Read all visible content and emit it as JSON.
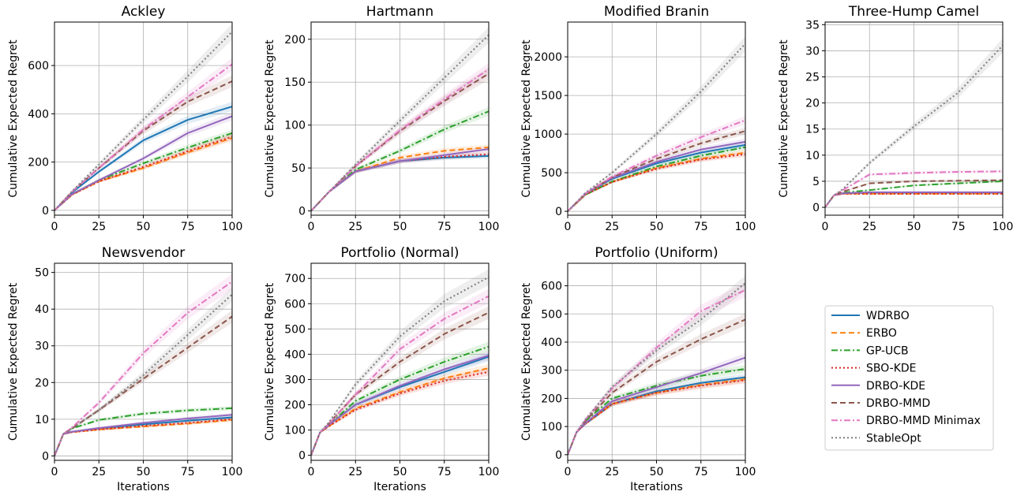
{
  "colors": {
    "WDRBO": "#1f77b4",
    "ERBO": "#ff7f0e",
    "GP-UCB": "#2ca02c",
    "SBO-KDE": "#d62728",
    "DRBO-KDE": "#9467bd",
    "DRBO-MMD": "#8c564b",
    "DRBO-MMD Minimax": "#e377c2",
    "StableOpt": "#7f7f7f"
  },
  "legend": {
    "placement": "right-middle",
    "entries": [
      {
        "name": "WDRBO",
        "style": "solid"
      },
      {
        "name": "ERBO",
        "style": "dashed"
      },
      {
        "name": "GP-UCB",
        "style": "dashdot"
      },
      {
        "name": "SBO-KDE",
        "style": "dotted"
      },
      {
        "name": "DRBO-KDE",
        "style": "solid"
      },
      {
        "name": "DRBO-MMD",
        "style": "dashed"
      },
      {
        "name": "DRBO-MMD Minimax",
        "style": "dashdot"
      },
      {
        "name": "StableOpt",
        "style": "dotted"
      }
    ]
  },
  "chart_data": [
    {
      "type": "line",
      "title": "Ackley",
      "xlabel": "",
      "ylabel": "Cumulative Expected Regret",
      "xlim": [
        0,
        100
      ],
      "ylim": [
        -20,
        780
      ],
      "xticks": [
        0,
        25,
        50,
        75,
        100
      ],
      "yticks": [
        0,
        200,
        400,
        600
      ],
      "grid": true,
      "x": [
        0,
        10,
        25,
        50,
        75,
        100
      ],
      "series": [
        {
          "name": "WDRBO",
          "values": [
            0,
            75,
            160,
            290,
            375,
            430
          ]
        },
        {
          "name": "ERBO",
          "values": [
            0,
            65,
            120,
            175,
            240,
            300
          ]
        },
        {
          "name": "GP-UCB",
          "values": [
            0,
            68,
            125,
            195,
            260,
            320
          ]
        },
        {
          "name": "SBO-KDE",
          "values": [
            0,
            65,
            120,
            180,
            245,
            305
          ]
        },
        {
          "name": "DRBO-KDE",
          "values": [
            0,
            68,
            125,
            215,
            320,
            390
          ]
        },
        {
          "name": "DRBO-MMD",
          "values": [
            0,
            78,
            175,
            330,
            450,
            535
          ]
        },
        {
          "name": "DRBO-MMD Minimax",
          "values": [
            0,
            78,
            175,
            335,
            470,
            605
          ]
        },
        {
          "name": "StableOpt",
          "values": [
            0,
            80,
            190,
            375,
            555,
            740
          ]
        }
      ]
    },
    {
      "type": "line",
      "title": "Hartmann",
      "xlabel": "",
      "ylabel": "Cumulative Expected Regret",
      "xlim": [
        0,
        100
      ],
      "ylim": [
        -5,
        220
      ],
      "xticks": [
        0,
        25,
        50,
        75,
        100
      ],
      "yticks": [
        0,
        50,
        100,
        150,
        200
      ],
      "grid": true,
      "x": [
        0,
        10,
        25,
        50,
        75,
        100
      ],
      "series": [
        {
          "name": "WDRBO",
          "values": [
            0,
            22,
            46,
            58,
            62,
            64
          ]
        },
        {
          "name": "ERBO",
          "values": [
            0,
            22,
            46,
            62,
            70,
            74
          ]
        },
        {
          "name": "GP-UCB",
          "values": [
            0,
            22,
            48,
            70,
            95,
            116
          ]
        },
        {
          "name": "SBO-KDE",
          "values": [
            0,
            22,
            46,
            58,
            63,
            66
          ]
        },
        {
          "name": "DRBO-KDE",
          "values": [
            0,
            22,
            46,
            58,
            65,
            72
          ]
        },
        {
          "name": "DRBO-MMD",
          "values": [
            0,
            22,
            52,
            93,
            128,
            160
          ]
        },
        {
          "name": "DRBO-MMD Minimax",
          "values": [
            0,
            22,
            52,
            94,
            130,
            165
          ]
        },
        {
          "name": "StableOpt",
          "values": [
            0,
            22,
            54,
            105,
            155,
            205
          ]
        }
      ]
    },
    {
      "type": "line",
      "title": "Modified Branin",
      "xlabel": "",
      "ylabel": "Cumulative Expected Regret",
      "xlim": [
        0,
        100
      ],
      "ylim": [
        -50,
        2450
      ],
      "xticks": [
        0,
        25,
        50,
        75,
        100
      ],
      "yticks": [
        0,
        500,
        1000,
        1500,
        2000
      ],
      "grid": true,
      "x": [
        0,
        10,
        25,
        50,
        75,
        100
      ],
      "series": [
        {
          "name": "WDRBO",
          "values": [
            0,
            230,
            420,
            620,
            760,
            860
          ]
        },
        {
          "name": "ERBO",
          "values": [
            0,
            215,
            380,
            560,
            680,
            760
          ]
        },
        {
          "name": "GP-UCB",
          "values": [
            0,
            215,
            385,
            580,
            720,
            830
          ]
        },
        {
          "name": "SBO-KDE",
          "values": [
            0,
            215,
            380,
            550,
            670,
            740
          ]
        },
        {
          "name": "DRBO-KDE",
          "values": [
            0,
            230,
            430,
            640,
            800,
            900
          ]
        },
        {
          "name": "DRBO-MMD",
          "values": [
            0,
            230,
            440,
            680,
            880,
            1040
          ]
        },
        {
          "name": "DRBO-MMD Minimax",
          "values": [
            0,
            230,
            450,
            720,
            960,
            1180
          ]
        },
        {
          "name": "StableOpt",
          "values": [
            0,
            240,
            500,
            1000,
            1550,
            2170
          ]
        }
      ]
    },
    {
      "type": "line",
      "title": "Three-Hump Camel",
      "xlabel": "",
      "ylabel": "Cumulative Expected Regret",
      "xlim": [
        0,
        100
      ],
      "ylim": [
        -1.5,
        35.5
      ],
      "xticks": [
        0,
        25,
        50,
        75,
        100
      ],
      "yticks": [
        0,
        5,
        10,
        15,
        20,
        25,
        30,
        35
      ],
      "grid": true,
      "x": [
        0,
        5,
        10,
        25,
        50,
        75,
        100
      ],
      "series": [
        {
          "name": "WDRBO",
          "values": [
            0,
            2.3,
            2.7,
            2.8,
            2.8,
            2.8,
            2.8
          ]
        },
        {
          "name": "ERBO",
          "values": [
            0,
            2.3,
            2.6,
            2.6,
            2.6,
            2.6,
            2.6
          ]
        },
        {
          "name": "GP-UCB",
          "values": [
            0,
            2.3,
            2.8,
            3.3,
            4.2,
            4.6,
            5.0
          ]
        },
        {
          "name": "SBO-KDE",
          "values": [
            0,
            2.3,
            2.6,
            2.6,
            2.6,
            2.6,
            2.6
          ]
        },
        {
          "name": "DRBO-KDE",
          "values": [
            0,
            2.3,
            2.7,
            2.9,
            2.9,
            2.9,
            2.9
          ]
        },
        {
          "name": "DRBO-MMD",
          "values": [
            0,
            2.3,
            3.0,
            4.6,
            5.0,
            5.1,
            5.2
          ]
        },
        {
          "name": "DRBO-MMD Minimax",
          "values": [
            0,
            2.3,
            3.3,
            6.3,
            6.6,
            6.8,
            6.9
          ]
        },
        {
          "name": "StableOpt",
          "values": [
            0,
            2.3,
            3.5,
            8.5,
            15.5,
            22.0,
            31.0
          ]
        }
      ]
    },
    {
      "type": "line",
      "title": "Newsvendor",
      "xlabel": "Iterations",
      "ylabel": "Cumulative Expected Regret",
      "xlim": [
        0,
        100
      ],
      "ylim": [
        -1.2,
        52.5
      ],
      "xticks": [
        0,
        25,
        50,
        75,
        100
      ],
      "yticks": [
        0,
        10,
        20,
        30,
        40,
        50
      ],
      "grid": true,
      "x": [
        0,
        5,
        10,
        25,
        50,
        75,
        100
      ],
      "series": [
        {
          "name": "WDRBO",
          "values": [
            0,
            6.0,
            6.6,
            7.5,
            8.6,
            9.6,
            10.5
          ]
        },
        {
          "name": "ERBO",
          "values": [
            0,
            6.0,
            6.5,
            7.2,
            8.0,
            8.8,
            9.8
          ]
        },
        {
          "name": "GP-UCB",
          "values": [
            0,
            6.0,
            7.5,
            9.8,
            11.5,
            12.4,
            13.0
          ]
        },
        {
          "name": "SBO-KDE",
          "values": [
            0,
            6.0,
            6.5,
            7.2,
            8.2,
            9.0,
            10.0
          ]
        },
        {
          "name": "DRBO-KDE",
          "values": [
            0,
            6.0,
            6.6,
            7.6,
            9.0,
            10.2,
            11.2
          ]
        },
        {
          "name": "DRBO-MMD",
          "values": [
            0,
            6.0,
            7.5,
            12.5,
            21.0,
            29.5,
            38.0
          ]
        },
        {
          "name": "DRBO-MMD Minimax",
          "values": [
            0,
            6.0,
            7.8,
            14.5,
            28.0,
            39.0,
            47.5
          ]
        },
        {
          "name": "StableOpt",
          "values": [
            0,
            6.0,
            7.6,
            12.5,
            22.0,
            33.0,
            44.0
          ]
        }
      ]
    },
    {
      "type": "line",
      "title": "Portfolio (Normal)",
      "xlabel": "Iterations",
      "ylabel": "Cumulative Expected Regret",
      "xlim": [
        0,
        100
      ],
      "ylim": [
        -20,
        760
      ],
      "xticks": [
        0,
        25,
        50,
        75,
        100
      ],
      "yticks": [
        0,
        100,
        200,
        300,
        400,
        500,
        600,
        700
      ],
      "grid": true,
      "x": [
        0,
        5,
        10,
        25,
        50,
        75,
        100
      ],
      "series": [
        {
          "name": "WDRBO",
          "values": [
            0,
            90,
            120,
            200,
            270,
            330,
            390
          ]
        },
        {
          "name": "ERBO",
          "values": [
            0,
            90,
            115,
            185,
            250,
            305,
            345
          ]
        },
        {
          "name": "GP-UCB",
          "values": [
            0,
            90,
            120,
            215,
            300,
            370,
            430
          ]
        },
        {
          "name": "SBO-KDE",
          "values": [
            0,
            90,
            115,
            180,
            245,
            295,
            330
          ]
        },
        {
          "name": "DRBO-KDE",
          "values": [
            0,
            90,
            120,
            200,
            275,
            340,
            395
          ]
        },
        {
          "name": "DRBO-MMD",
          "values": [
            0,
            90,
            125,
            240,
            370,
            480,
            565
          ]
        },
        {
          "name": "DRBO-MMD Minimax",
          "values": [
            0,
            90,
            125,
            240,
            420,
            540,
            630
          ]
        },
        {
          "name": "StableOpt",
          "values": [
            0,
            90,
            130,
            280,
            470,
            610,
            705
          ]
        }
      ]
    },
    {
      "type": "line",
      "title": "Portfolio (Uniform)",
      "xlabel": "Iterations",
      "ylabel": "Cumulative Expected Regret",
      "xlim": [
        0,
        100
      ],
      "ylim": [
        -20,
        680
      ],
      "xticks": [
        0,
        25,
        50,
        75,
        100
      ],
      "yticks": [
        0,
        100,
        200,
        300,
        400,
        500,
        600
      ],
      "grid": true,
      "x": [
        0,
        5,
        10,
        25,
        50,
        75,
        100
      ],
      "series": [
        {
          "name": "WDRBO",
          "values": [
            0,
            80,
            110,
            180,
            225,
            255,
            275
          ]
        },
        {
          "name": "ERBO",
          "values": [
            0,
            80,
            110,
            180,
            220,
            248,
            268
          ]
        },
        {
          "name": "GP-UCB",
          "values": [
            0,
            80,
            120,
            200,
            245,
            280,
            305
          ]
        },
        {
          "name": "SBO-KDE",
          "values": [
            0,
            80,
            110,
            180,
            220,
            245,
            265
          ]
        },
        {
          "name": "DRBO-KDE",
          "values": [
            0,
            80,
            112,
            190,
            240,
            290,
            345
          ]
        },
        {
          "name": "DRBO-MMD",
          "values": [
            0,
            80,
            120,
            220,
            330,
            410,
            480
          ]
        },
        {
          "name": "DRBO-MMD Minimax",
          "values": [
            0,
            80,
            125,
            235,
            380,
            510,
            585
          ]
        },
        {
          "name": "StableOpt",
          "values": [
            0,
            80,
            125,
            240,
            370,
            480,
            610
          ]
        }
      ]
    }
  ]
}
